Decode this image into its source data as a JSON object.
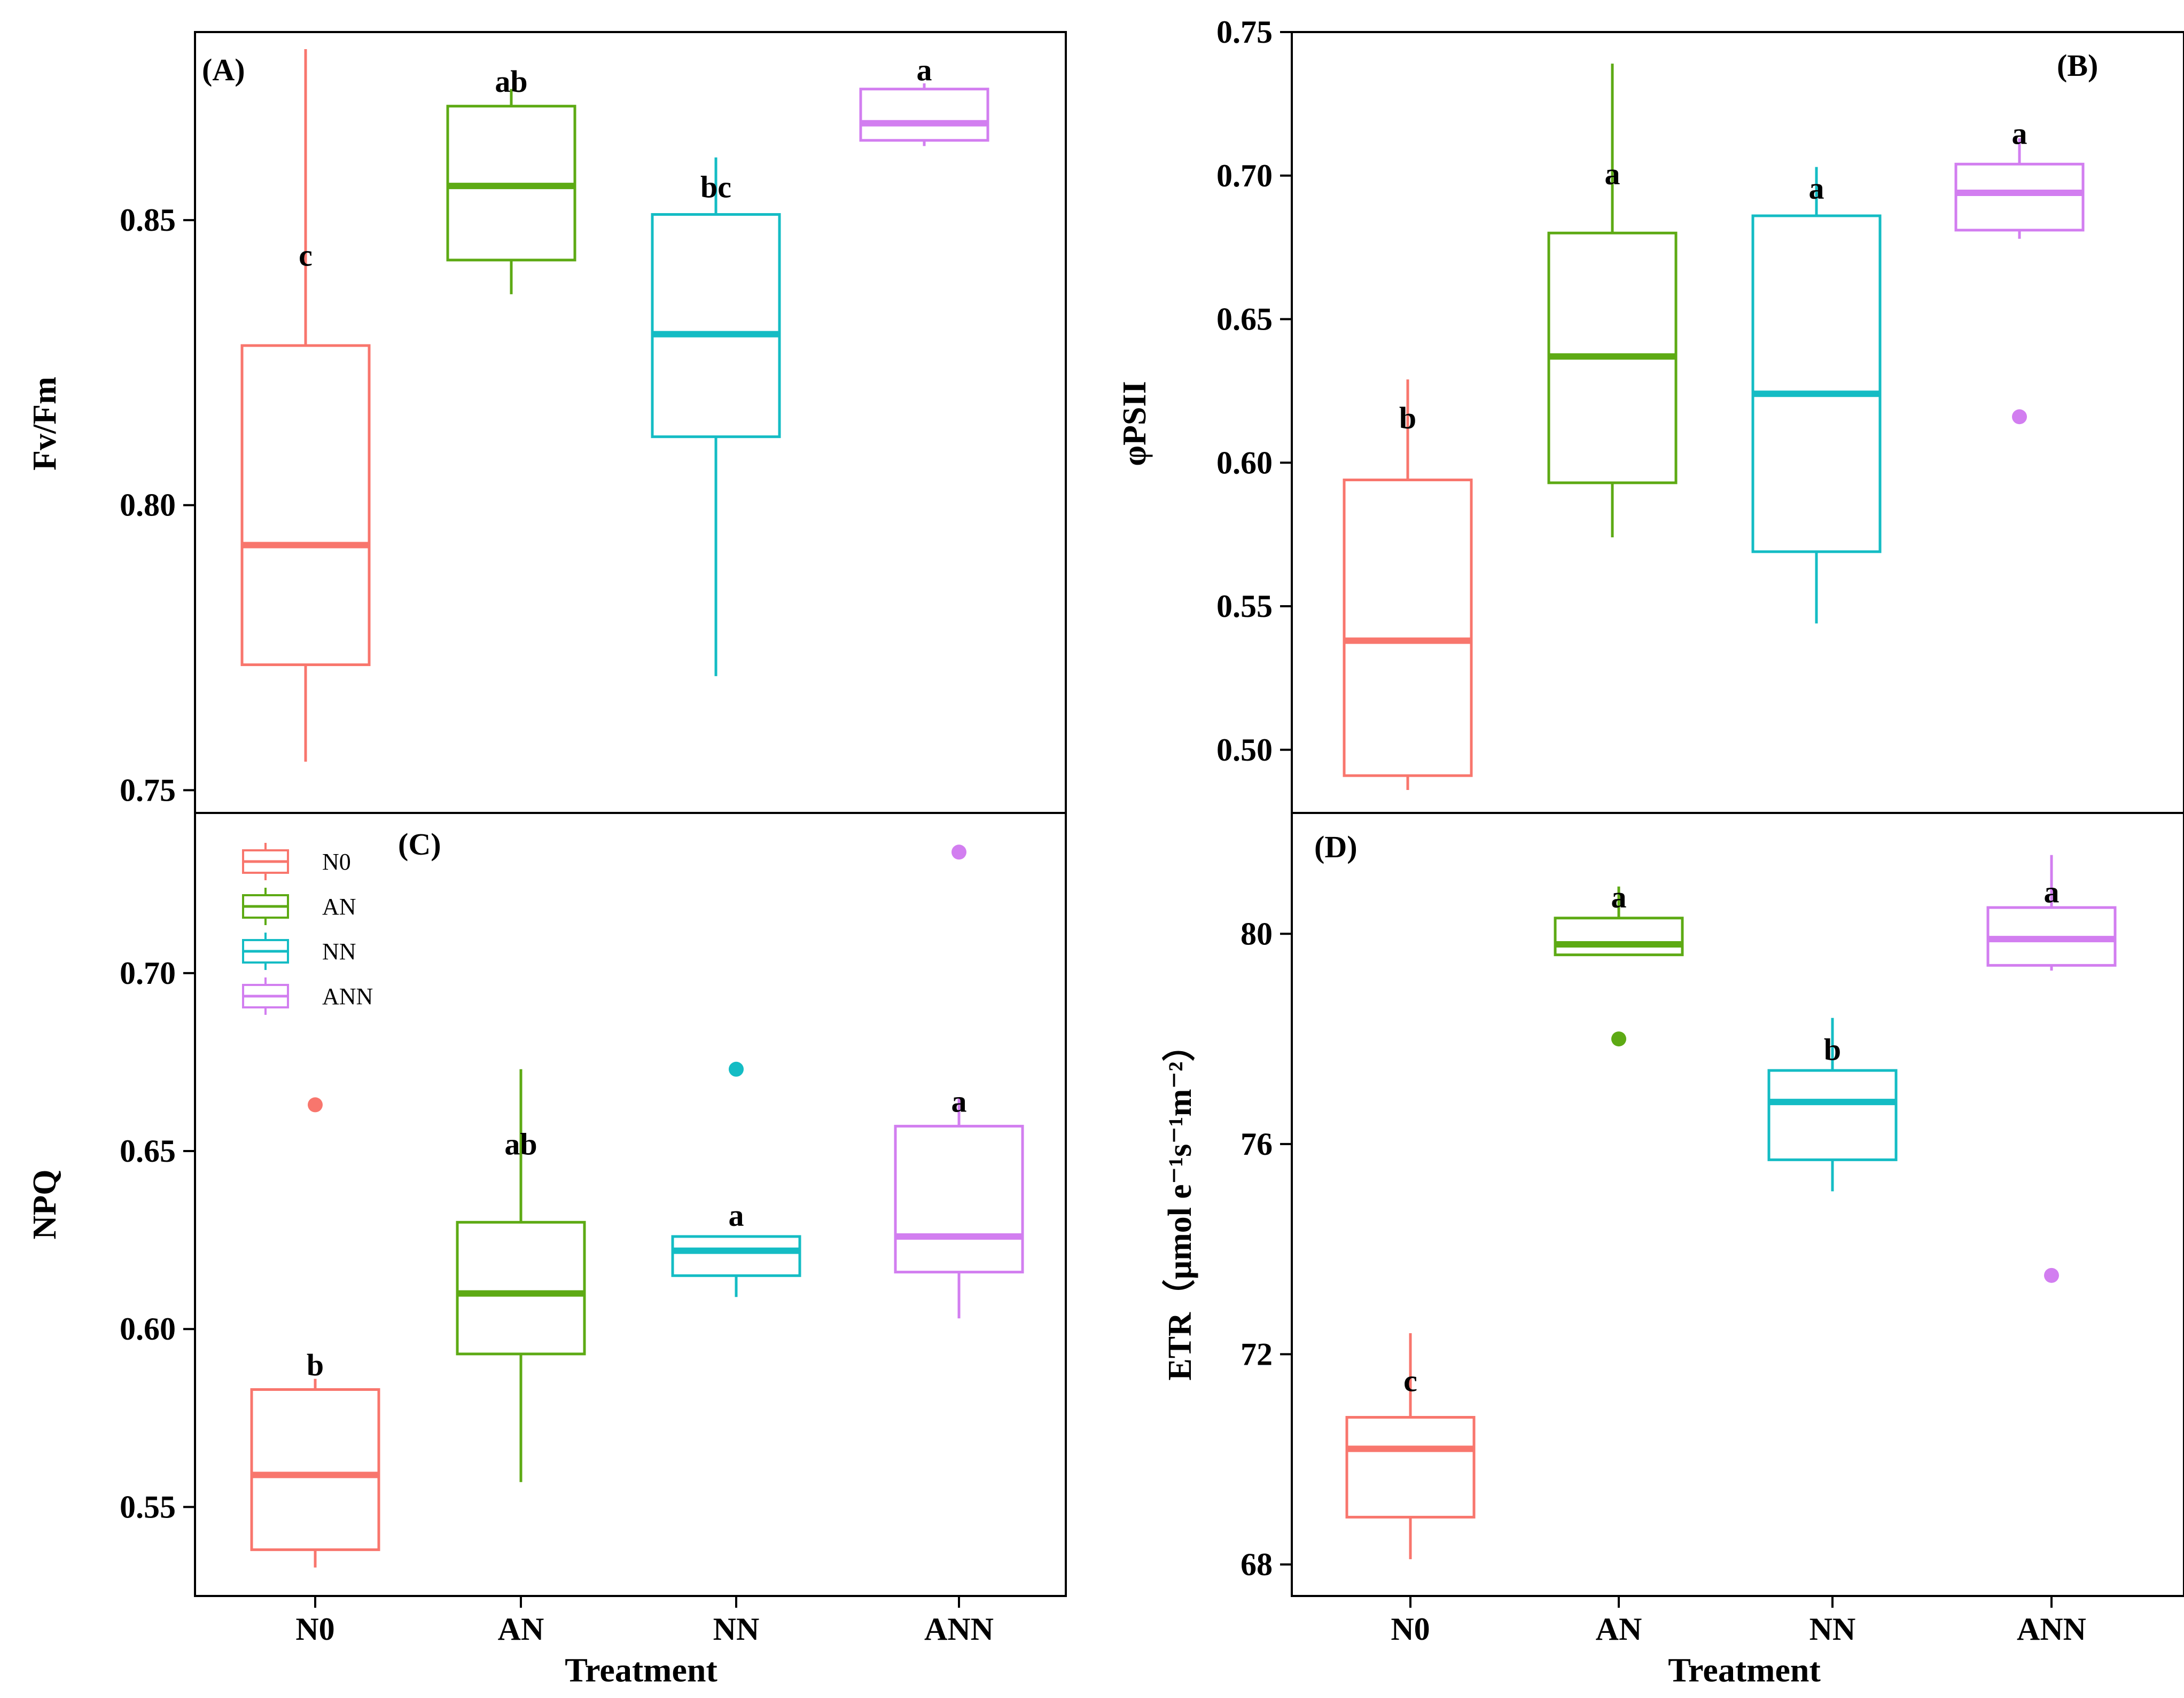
{
  "chart_data": [
    {
      "type": "box",
      "panel_label": "(A)",
      "ylabel": "Fv/Fm",
      "xlabel": "",
      "categories": [
        "N0",
        "AN",
        "NN",
        "ANN"
      ],
      "ylim": [
        0.746,
        0.883
      ],
      "yticks": [
        0.75,
        0.8,
        0.85
      ],
      "ytick_labels": [
        "0.75",
        "0.80",
        "0.85"
      ],
      "boxes": [
        {
          "name": "N0",
          "whisker_low": 0.755,
          "q1": 0.772,
          "median": 0.793,
          "q3": 0.828,
          "whisker_high": 0.88,
          "outliers": [],
          "letter": "c",
          "letter_y": 0.842
        },
        {
          "name": "AN",
          "whisker_low": 0.837,
          "q1": 0.843,
          "median": 0.856,
          "q3": 0.87,
          "whisker_high": 0.873,
          "outliers": [],
          "letter": "ab",
          "letter_y": 0.8725
        },
        {
          "name": "NN",
          "whisker_low": 0.77,
          "q1": 0.812,
          "median": 0.83,
          "q3": 0.851,
          "whisker_high": 0.861,
          "outliers": [],
          "letter": "bc",
          "letter_y": 0.854
        },
        {
          "name": "ANN",
          "whisker_low": 0.863,
          "q1": 0.864,
          "median": 0.867,
          "q3": 0.873,
          "whisker_high": 0.874,
          "outliers": [],
          "letter": "a",
          "letter_y": 0.8745
        }
      ]
    },
    {
      "type": "box",
      "panel_label": "(B)",
      "ylabel": "φPSII",
      "xlabel": "",
      "categories": [
        "N0",
        "AN",
        "NN",
        "ANN"
      ],
      "ylim": [
        0.478,
        0.75
      ],
      "yticks": [
        0.5,
        0.55,
        0.6,
        0.65,
        0.7,
        0.75
      ],
      "ytick_labels": [
        "0.50",
        "0.55",
        "0.60",
        "0.65",
        "0.70",
        "0.75"
      ],
      "boxes": [
        {
          "name": "N0",
          "whisker_low": 0.486,
          "q1": 0.491,
          "median": 0.538,
          "q3": 0.594,
          "whisker_high": 0.629,
          "outliers": [],
          "letter": "b",
          "letter_y": 0.612
        },
        {
          "name": "AN",
          "whisker_low": 0.574,
          "q1": 0.593,
          "median": 0.637,
          "q3": 0.68,
          "whisker_high": 0.739,
          "outliers": [],
          "letter": "a",
          "letter_y": 0.697
        },
        {
          "name": "NN",
          "whisker_low": 0.544,
          "q1": 0.569,
          "median": 0.624,
          "q3": 0.686,
          "whisker_high": 0.703,
          "outliers": [],
          "letter": "a",
          "letter_y": 0.692
        },
        {
          "name": "ANN",
          "whisker_low": 0.678,
          "q1": 0.681,
          "median": 0.694,
          "q3": 0.704,
          "whisker_high": 0.713,
          "outliers": [
            0.616
          ],
          "letter": "a",
          "letter_y": 0.711
        }
      ]
    },
    {
      "type": "box",
      "panel_label": "(C)",
      "ylabel": "NPQ",
      "xlabel": "Treatment",
      "categories": [
        "N0",
        "AN",
        "NN",
        "ANN"
      ],
      "ylim": [
        0.525,
        0.745
      ],
      "yticks": [
        0.55,
        0.6,
        0.65,
        0.7
      ],
      "ytick_labels": [
        "0.55",
        "0.60",
        "0.65",
        "0.70"
      ],
      "boxes": [
        {
          "name": "N0",
          "whisker_low": 0.533,
          "q1": 0.538,
          "median": 0.559,
          "q3": 0.583,
          "whisker_high": 0.586,
          "outliers": [
            0.663
          ],
          "letter": "b",
          "letter_y": 0.587
        },
        {
          "name": "AN",
          "whisker_low": 0.557,
          "q1": 0.593,
          "median": 0.61,
          "q3": 0.63,
          "whisker_high": 0.673,
          "outliers": [],
          "letter": "ab",
          "letter_y": 0.649
        },
        {
          "name": "NN",
          "whisker_low": 0.609,
          "q1": 0.615,
          "median": 0.622,
          "q3": 0.626,
          "whisker_high": 0.626,
          "outliers": [
            0.673
          ],
          "letter": "a",
          "letter_y": 0.629
        },
        {
          "name": "ANN",
          "whisker_low": 0.603,
          "q1": 0.616,
          "median": 0.626,
          "q3": 0.657,
          "whisker_high": 0.665,
          "outliers": [
            0.734
          ],
          "letter": "a",
          "letter_y": 0.661
        }
      ],
      "legend": {
        "position": "top-left",
        "entries": [
          "N0",
          "AN",
          "NN",
          "ANN"
        ]
      }
    },
    {
      "type": "box",
      "panel_label": "(D)",
      "ylabel": "ETR（μmol e⁻¹s⁻¹m⁻²）",
      "xlabel": "Treatment",
      "categories": [
        "N0",
        "AN",
        "NN",
        "ANN"
      ],
      "ylim": [
        67.4,
        82.3
      ],
      "yticks": [
        68,
        72,
        76,
        80
      ],
      "ytick_labels": [
        "68",
        "72",
        "76",
        "80"
      ],
      "boxes": [
        {
          "name": "N0",
          "whisker_low": 68.1,
          "q1": 68.9,
          "median": 70.2,
          "q3": 70.8,
          "whisker_high": 72.4,
          "outliers": [],
          "letter": "c",
          "letter_y": 71.3
        },
        {
          "name": "AN",
          "whisker_low": 79.6,
          "q1": 79.6,
          "median": 79.8,
          "q3": 80.3,
          "whisker_high": 80.9,
          "outliers": [
            78.0
          ],
          "letter": "a",
          "letter_y": 80.5
        },
        {
          "name": "NN",
          "whisker_low": 75.1,
          "q1": 75.7,
          "median": 76.8,
          "q3": 77.4,
          "whisker_high": 78.4,
          "outliers": [],
          "letter": "b",
          "letter_y": 77.6
        },
        {
          "name": "ANN",
          "whisker_low": 79.3,
          "q1": 79.4,
          "median": 79.9,
          "q3": 80.5,
          "whisker_high": 81.5,
          "outliers": [
            73.5
          ],
          "letter": "a",
          "letter_y": 80.6
        }
      ]
    }
  ],
  "colors": {
    "N0": "#F8766D",
    "AN": "#5DAA14",
    "NN": "#14BCC4",
    "ANN": "#D27EF0"
  }
}
